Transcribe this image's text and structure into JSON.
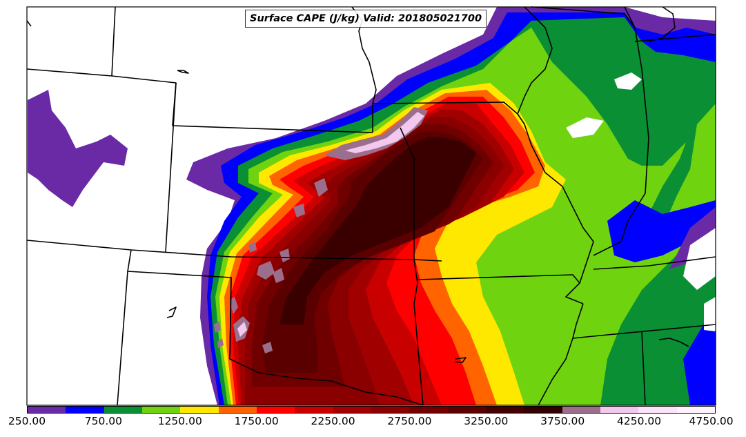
{
  "title": "Surface CAPE (J/kg) Valid: 201805021700",
  "colorbar": {
    "min": 250,
    "max": 4750,
    "step": 250,
    "ticks": [
      "250.00",
      "750.00",
      "1250.00",
      "1750.00",
      "2250.00",
      "2750.00",
      "3250.00",
      "3750.00",
      "4250.00",
      "4750.00"
    ],
    "colors": [
      "#6a2aa6",
      "#0000ff",
      "#0b8f34",
      "#6fd40f",
      "#ffe800",
      "#ff6400",
      "#ff0000",
      "#c80000",
      "#a00000",
      "#8a0000",
      "#700000",
      "#5a0000",
      "#420000",
      "#300000",
      "#9b6f8c",
      "#f2c8ee",
      "#fbe3f8",
      "#fef2fc"
    ]
  },
  "palette": {
    "c250": "#6a2aa6",
    "c750": "#0000ff",
    "c1000": "#0b8f34",
    "c1250": "#6fd40f",
    "c1500": "#ffe800",
    "c1750": "#ff6400",
    "c2000": "#ff0000",
    "c2250": "#c80000",
    "c2500": "#a00000",
    "c2750": "#8a0000",
    "c3000": "#700000",
    "c3250": "#5a0000",
    "c3500": "#3a0000",
    "c3750": "#9b6f8c",
    "c4000": "#f2c8ee",
    "border": "#000000"
  }
}
